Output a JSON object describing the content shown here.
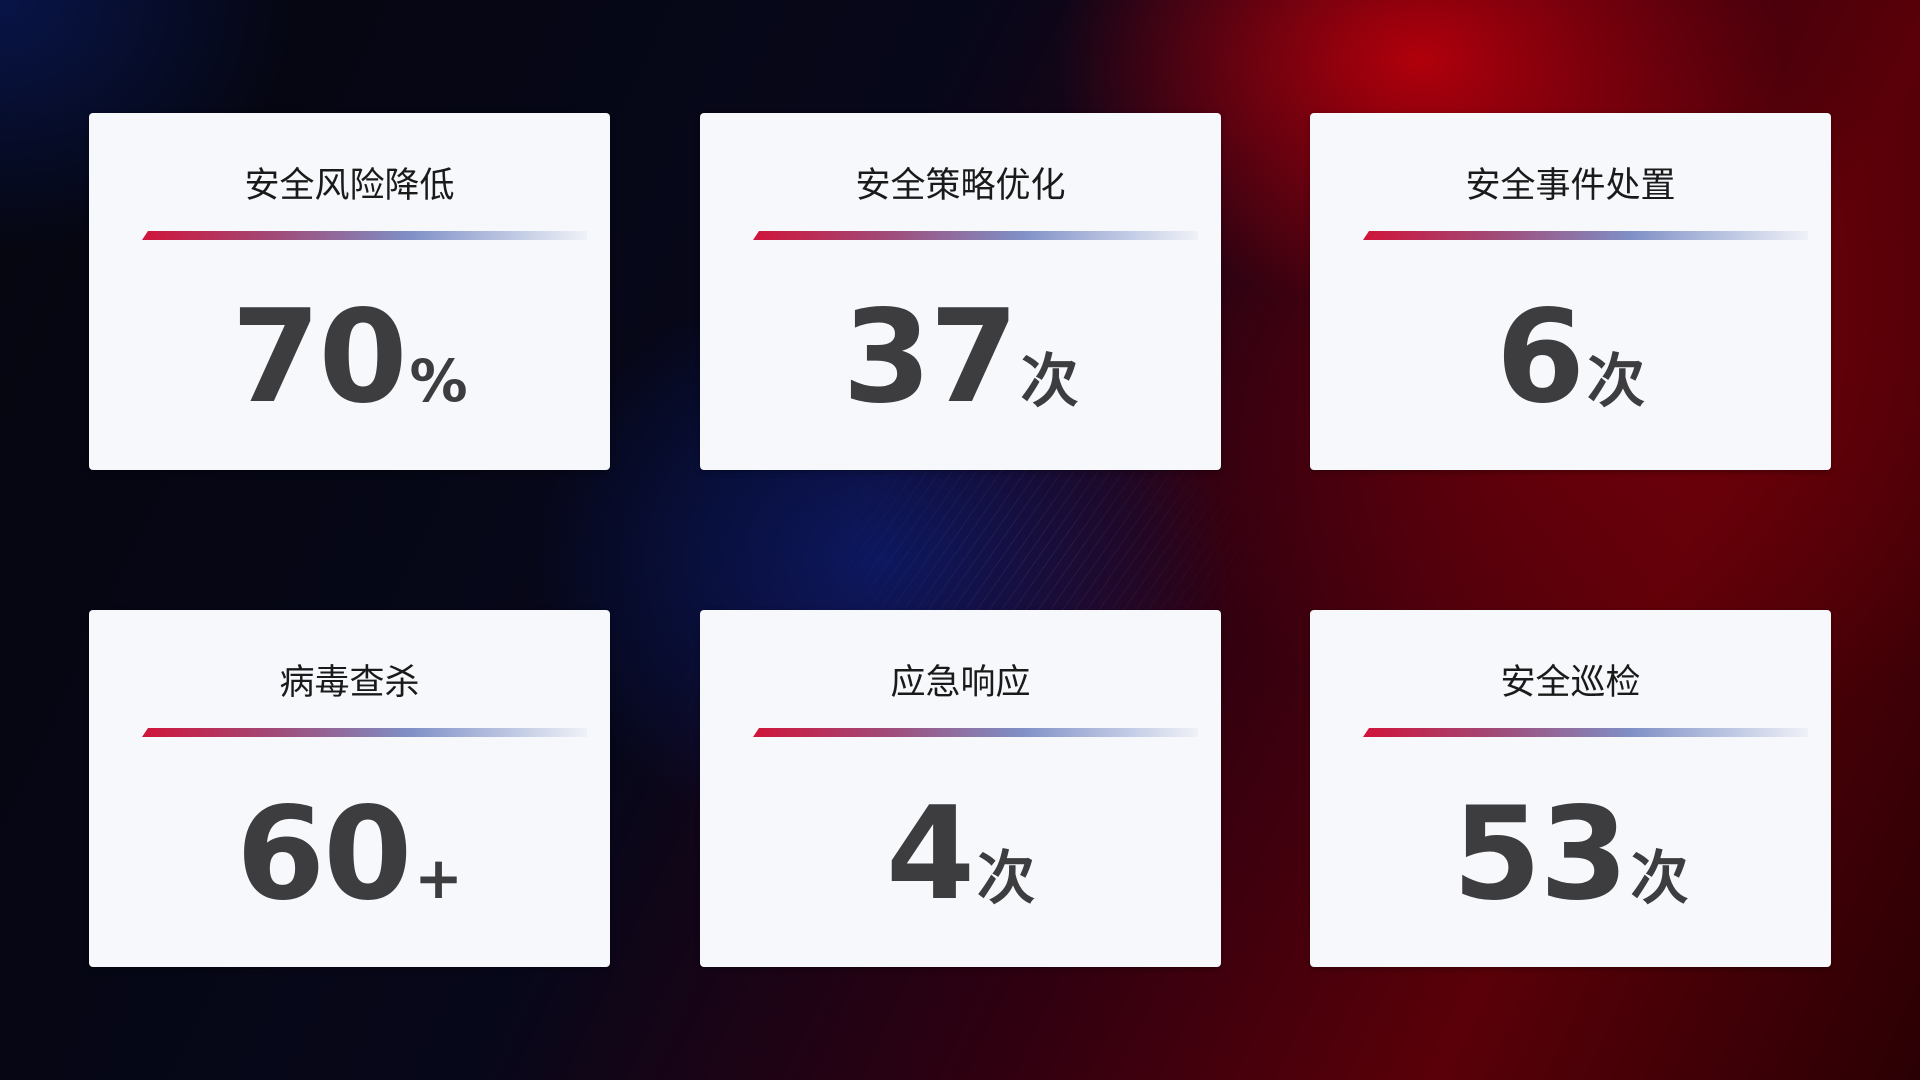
{
  "cards": [
    {
      "title": "安全风险降低",
      "value": "70",
      "unit": "%"
    },
    {
      "title": "安全策略优化",
      "value": "37",
      "unit": "次"
    },
    {
      "title": "安全事件处置",
      "value": "6",
      "unit": "次"
    },
    {
      "title": "病毒查杀",
      "value": "60",
      "unit": "+"
    },
    {
      "title": "应急响应",
      "value": "4",
      "unit": "次"
    },
    {
      "title": "安全巡检",
      "value": "53",
      "unit": "次"
    }
  ],
  "colors": {
    "accent_red": "#d0143a",
    "accent_blue": "#7f8fc6",
    "card_bg": "#f6f8fc",
    "value_text": "#3d3d3f"
  }
}
